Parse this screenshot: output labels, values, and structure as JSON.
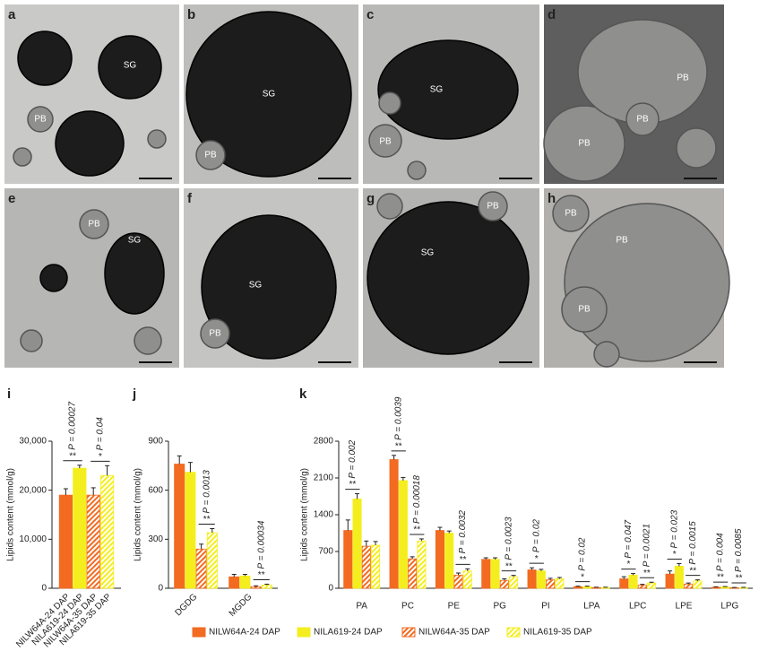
{
  "panels": [
    {
      "letter": "a",
      "labels": [
        "SG",
        "PB"
      ]
    },
    {
      "letter": "b",
      "labels": [
        "SG",
        "PB"
      ]
    },
    {
      "letter": "c",
      "labels": [
        "SG",
        "PB"
      ]
    },
    {
      "letter": "d",
      "labels": [
        "PB",
        "PB",
        "PB"
      ]
    },
    {
      "letter": "e",
      "labels": [
        "PB",
        "SG"
      ]
    },
    {
      "letter": "f",
      "labels": [
        "SG",
        "PB"
      ]
    },
    {
      "letter": "g",
      "labels": [
        "SG",
        "PB"
      ]
    },
    {
      "letter": "h",
      "labels": [
        "PB",
        "PB",
        "PB"
      ]
    }
  ],
  "chart_data": [
    {
      "type": "bar",
      "panel": "i",
      "y_label": "Lipids content (mmol/g)",
      "ylim": [
        0,
        30000
      ],
      "yticks": [
        0,
        {
          "value": 10000,
          "label": "10,000"
        },
        {
          "value": 20000,
          "label": "20,000"
        },
        {
          "value": 30000,
          "label": "30,000"
        }
      ],
      "categories": [
        null
      ],
      "x_labels": "series",
      "legend": false,
      "series": [
        {
          "name": "NILW64A-24 DAP",
          "color": "#f26b21",
          "hatch": false,
          "values": [
            19000
          ],
          "errors": [
            1300
          ]
        },
        {
          "name": "NILA619-24 DAP",
          "color": "#f5ee1f",
          "hatch": false,
          "values": [
            24500
          ],
          "errors": [
            600
          ]
        },
        {
          "name": "NILW64A-35 DAP",
          "color": "#f26b21",
          "hatch": true,
          "values": [
            19000
          ],
          "errors": [
            1500
          ]
        },
        {
          "name": "NILA619-35 DAP",
          "color": "#f5ee1f",
          "hatch": true,
          "values": [
            23000
          ],
          "errors": [
            2000
          ]
        }
      ],
      "comparisons": [
        {
          "category": null,
          "series": [
            "NILW64A-24 DAP",
            "NILA619-24 DAP"
          ],
          "stars": "**",
          "label": "P = 0.00027"
        },
        {
          "category": null,
          "series": [
            "NILW64A-35 DAP",
            "NILA619-35 DAP"
          ],
          "stars": "*",
          "label": "P = 0.04"
        }
      ]
    },
    {
      "type": "bar",
      "panel": "j",
      "y_label": "Lipids content (mmol/g)",
      "ylim": [
        0,
        900
      ],
      "yticks": [
        0,
        300,
        600,
        900
      ],
      "categories": [
        "DGDG",
        "MGDG"
      ],
      "x_labels": "categories",
      "legend": false,
      "series": [
        {
          "name": "NILW64A-24 DAP",
          "color": "#f26b21",
          "hatch": false,
          "values": [
            760,
            70
          ],
          "errors": [
            50,
            15
          ]
        },
        {
          "name": "NILA619-24 DAP",
          "color": "#f5ee1f",
          "hatch": false,
          "values": [
            710,
            75
          ],
          "errors": [
            60,
            10
          ]
        },
        {
          "name": "NILW64A-35 DAP",
          "color": "#f26b21",
          "hatch": true,
          "values": [
            240,
            10
          ],
          "errors": [
            30,
            5
          ]
        },
        {
          "name": "NILA619-35 DAP",
          "color": "#f5ee1f",
          "hatch": true,
          "values": [
            340,
            20
          ],
          "errors": [
            25,
            5
          ]
        }
      ],
      "comparisons": [
        {
          "category": "DGDG",
          "series": [
            "NILW64A-35 DAP",
            "NILA619-35 DAP"
          ],
          "stars": "**",
          "label": "P = 0.0013"
        },
        {
          "category": "MGDG",
          "series": [
            "NILW64A-35 DAP",
            "NILA619-35 DAP"
          ],
          "stars": "**",
          "label": "P = 0.00034"
        }
      ]
    },
    {
      "type": "bar",
      "panel": "k",
      "y_label": "Lipids content (mmol/g)",
      "ylim": [
        0,
        2800
      ],
      "yticks": [
        0,
        700,
        1400,
        2100,
        2800
      ],
      "categories": [
        "PA",
        "PC",
        "PE",
        "PG",
        "PI",
        "LPA",
        "LPC",
        "LPE",
        "LPG"
      ],
      "x_labels": "categories",
      "legend": "bottom",
      "series": [
        {
          "name": "NILW64A-24 DAP",
          "color": "#f26b21",
          "hatch": false,
          "values": [
            1100,
            2450,
            1100,
            550,
            350,
            30,
            180,
            270,
            20
          ],
          "errors": [
            200,
            80,
            60,
            30,
            40,
            10,
            40,
            60,
            8
          ]
        },
        {
          "name": "NILA619-24 DAP",
          "color": "#f5ee1f",
          "hatch": false,
          "values": [
            1700,
            2050,
            1050,
            550,
            330,
            30,
            250,
            420,
            25
          ],
          "errors": [
            100,
            60,
            40,
            30,
            30,
            10,
            30,
            50,
            8
          ]
        },
        {
          "name": "NILW64A-35 DAP",
          "color": "#f26b21",
          "hatch": true,
          "values": [
            800,
            560,
            250,
            150,
            160,
            15,
            60,
            80,
            10
          ],
          "errors": [
            100,
            40,
            40,
            30,
            30,
            5,
            15,
            20,
            5
          ]
        },
        {
          "name": "NILA619-35 DAP",
          "color": "#f5ee1f",
          "hatch": true,
          "values": [
            820,
            900,
            330,
            220,
            180,
            15,
            100,
            140,
            12
          ],
          "errors": [
            70,
            40,
            40,
            25,
            25,
            5,
            15,
            20,
            5
          ]
        }
      ],
      "comparisons": [
        {
          "category": "PA",
          "series": [
            "NILW64A-24 DAP",
            "NILA619-24 DAP"
          ],
          "stars": "**",
          "label": "P = 0.002"
        },
        {
          "category": "PC",
          "series": [
            "NILW64A-24 DAP",
            "NILA619-24 DAP"
          ],
          "stars": "**",
          "label": "P = 0.0039"
        },
        {
          "category": "PC",
          "series": [
            "NILW64A-35 DAP",
            "NILA619-35 DAP"
          ],
          "stars": "**",
          "label": "P = 0.00018"
        },
        {
          "category": "PE",
          "series": [
            "NILW64A-35 DAP",
            "NILA619-35 DAP"
          ],
          "stars": "**",
          "label": "P = 0.0032"
        },
        {
          "category": "PG",
          "series": [
            "NILW64A-35 DAP",
            "NILA619-35 DAP"
          ],
          "stars": "**",
          "label": "P = 0.0023"
        },
        {
          "category": "PI",
          "series": [
            "NILW64A-24 DAP",
            "NILA619-24 DAP"
          ],
          "stars": "*",
          "label": "P = 0.02"
        },
        {
          "category": "LPA",
          "series": [
            "NILW64A-24 DAP",
            "NILA619-24 DAP"
          ],
          "stars": "*",
          "label": "P = 0.02"
        },
        {
          "category": "LPC",
          "series": [
            "NILW64A-24 DAP",
            "NILA619-24 DAP"
          ],
          "stars": "*",
          "label": "P = 0.047"
        },
        {
          "category": "LPC",
          "series": [
            "NILW64A-35 DAP",
            "NILA619-35 DAP"
          ],
          "stars": "**",
          "label": "P = 0.0021"
        },
        {
          "category": "LPE",
          "series": [
            "NILW64A-24 DAP",
            "NILA619-24 DAP"
          ],
          "stars": "*",
          "label": "P = 0.023"
        },
        {
          "category": "LPE",
          "series": [
            "NILW64A-35 DAP",
            "NILA619-35 DAP"
          ],
          "stars": "**",
          "label": "P = 0.0015"
        },
        {
          "category": "LPG",
          "series": [
            "NILW64A-24 DAP",
            "NILA619-24 DAP"
          ],
          "stars": "**",
          "label": "P = 0.004"
        },
        {
          "category": "LPG",
          "series": [
            "NILW64A-35 DAP",
            "NILA619-35 DAP"
          ],
          "stars": "**",
          "label": "P = 0.0085"
        }
      ]
    }
  ]
}
